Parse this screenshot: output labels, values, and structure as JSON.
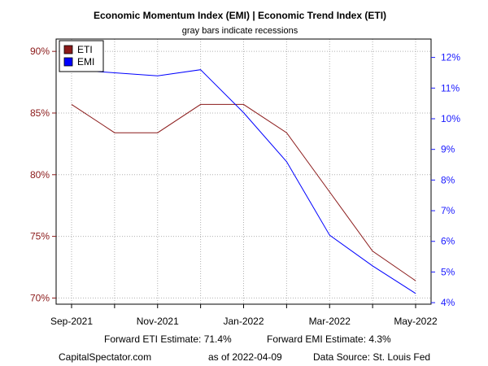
{
  "chart_data": {
    "type": "line",
    "title": "Economic Momentum Index (EMI) | Economic Trend Index (ETI)",
    "subtitle": "gray bars indicate recessions",
    "x": [
      "2021-09",
      "2021-10",
      "2021-11",
      "2021-12",
      "2022-01",
      "2022-02",
      "2022-03",
      "2022-04",
      "2022-05"
    ],
    "x_tick_labels": [
      "Sep-2021",
      "Nov-2021",
      "Jan-2022",
      "Mar-2022",
      "May-2022"
    ],
    "left_axis": {
      "ylim": [
        69.5,
        91
      ],
      "ticks": [
        "70%",
        "75%",
        "80%",
        "85%",
        "90%"
      ],
      "color": "#8b1a1a"
    },
    "right_axis": {
      "ylim": [
        3.95,
        12.6
      ],
      "ticks": [
        "4%",
        "5%",
        "6%",
        "7%",
        "8%",
        "9%",
        "10%",
        "11%",
        "12%"
      ],
      "color": "#1a1aff"
    },
    "series": [
      {
        "name": "ETI",
        "axis": "left",
        "color": "#8b1a1a",
        "values": [
          85.7,
          83.4,
          83.4,
          85.7,
          85.7,
          83.4,
          78.6,
          73.8,
          71.4
        ]
      },
      {
        "name": "EMI",
        "axis": "right",
        "color": "#0000ff",
        "values": [
          11.6,
          11.5,
          11.4,
          11.6,
          10.2,
          8.6,
          6.2,
          5.2,
          4.3
        ]
      }
    ],
    "legend": {
      "position": "top-left",
      "items": [
        {
          "name": "ETI",
          "color": "#8b1a1a"
        },
        {
          "name": "EMI",
          "color": "#0000ff"
        }
      ]
    },
    "grid": true
  },
  "footer": {
    "eti_estimate": "Forward ETI Estimate:   71.4%",
    "emi_estimate": "Forward EMI Estimate:   4.3%",
    "source_site": "CapitalSpectator.com",
    "as_of": "as of 2022-04-09",
    "data_source": "Data Source: St. Louis Fed"
  }
}
